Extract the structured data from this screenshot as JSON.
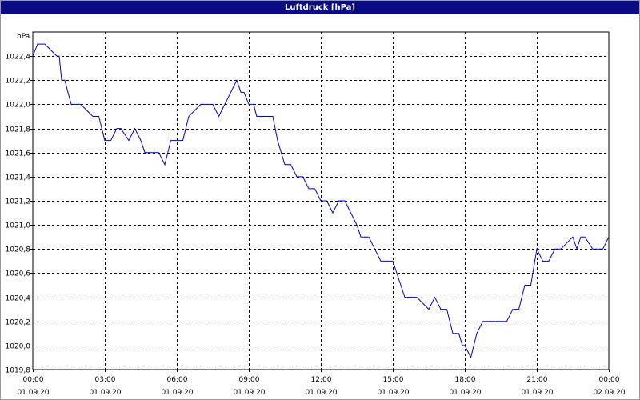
{
  "window": {
    "title": "Luftdruck [hPa]"
  },
  "colors": {
    "titlebar": "#0a0a82",
    "series": "#0000cc",
    "grid": "#000000"
  },
  "chart_data": {
    "type": "line",
    "title": "Luftdruck [hPa]",
    "ylabel": "hPa",
    "xlabel": "",
    "grid": true,
    "ylim": [
      1019.8,
      1022.6
    ],
    "xlim_hours": [
      0,
      24
    ],
    "x_tick_labels": [
      [
        "00:00",
        "01.09.20"
      ],
      [
        "03:00",
        "01.09.20"
      ],
      [
        "06:00",
        "01.09.20"
      ],
      [
        "09:00",
        "01.09.20"
      ],
      [
        "12:00",
        "01.09.20"
      ],
      [
        "15:00",
        "01.09.20"
      ],
      [
        "18:00",
        "01.09.20"
      ],
      [
        "21:00",
        "01.09.20"
      ],
      [
        "00:00",
        "02.09.20"
      ]
    ],
    "x_tick_hours": [
      0,
      3,
      6,
      9,
      12,
      15,
      18,
      21,
      24
    ],
    "y_ticks": [
      1019.8,
      1020.0,
      1020.2,
      1020.4,
      1020.6,
      1020.8,
      1021.0,
      1021.2,
      1021.4,
      1021.6,
      1021.8,
      1022.0,
      1022.2,
      1022.4
    ],
    "y_tick_labels": [
      "1019,8",
      "1020,0",
      "1020,2",
      "1020,4",
      "1020,6",
      "1020,8",
      "1021,0",
      "1021,2",
      "1021,4",
      "1021,6",
      "1021,8",
      "1022,0",
      "1022,2",
      "1022,4"
    ],
    "series": [
      {
        "x_hours": [
          0,
          0.2,
          0.33,
          0.5,
          1.0,
          1.1,
          1.2,
          1.33,
          1.6,
          1.75,
          2.0,
          2.5,
          2.6,
          2.75,
          3.0,
          3.25,
          3.5,
          3.67,
          4.0,
          4.25,
          4.5,
          4.67,
          5.0,
          5.25,
          5.5,
          5.75,
          6.0,
          6.25,
          6.5,
          7.0,
          7.25,
          7.5,
          7.75,
          8.0,
          8.5,
          8.67,
          8.8,
          9.0,
          9.2,
          9.33,
          9.5,
          10.0,
          10.2,
          10.5,
          10.75,
          11.0,
          11.25,
          11.5,
          11.75,
          12.0,
          12.25,
          12.5,
          12.75,
          13.0,
          13.5,
          13.67,
          14.0,
          14.25,
          14.5,
          14.75,
          15.0,
          15.5,
          15.67,
          16.0,
          16.5,
          16.75,
          17.0,
          17.25,
          17.5,
          17.75,
          17.9,
          18.0,
          18.25,
          18.5,
          18.75,
          19.0,
          19.5,
          19.75,
          20.0,
          20.25,
          20.5,
          20.75,
          21.0,
          21.25,
          21.5,
          21.75,
          22.0,
          22.5,
          22.67,
          22.83,
          23.0,
          23.33,
          23.5,
          23.75,
          24.0
        ],
        "y": [
          1022.4,
          1022.5,
          1022.5,
          1022.5,
          1022.4,
          1022.4,
          1022.2,
          1022.2,
          1022.0,
          1022.0,
          1022.0,
          1021.9,
          1021.9,
          1021.9,
          1021.7,
          1021.7,
          1021.8,
          1021.8,
          1021.7,
          1021.8,
          1021.7,
          1021.6,
          1021.6,
          1021.6,
          1021.5,
          1021.7,
          1021.7,
          1021.7,
          1021.9,
          1022.0,
          1022.0,
          1022.0,
          1021.9,
          1022.0,
          1022.2,
          1022.1,
          1022.1,
          1022.0,
          1022.0,
          1021.9,
          1021.9,
          1021.9,
          1021.7,
          1021.5,
          1021.5,
          1021.4,
          1021.4,
          1021.3,
          1021.3,
          1021.2,
          1021.2,
          1021.1,
          1021.2,
          1021.2,
          1021.0,
          1020.9,
          1020.9,
          1020.8,
          1020.7,
          1020.7,
          1020.7,
          1020.4,
          1020.4,
          1020.4,
          1020.3,
          1020.4,
          1020.3,
          1020.3,
          1020.1,
          1020.1,
          1020.0,
          1020.0,
          1019.9,
          1020.1,
          1020.2,
          1020.2,
          1020.2,
          1020.2,
          1020.3,
          1020.3,
          1020.5,
          1020.5,
          1020.8,
          1020.7,
          1020.7,
          1020.8,
          1020.8,
          1020.9,
          1020.8,
          1020.9,
          1020.9,
          1020.8,
          1020.8,
          1020.8,
          1020.9
        ]
      }
    ]
  }
}
